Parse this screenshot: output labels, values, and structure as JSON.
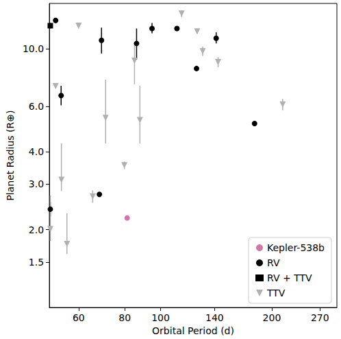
{
  "chart_data": {
    "type": "scatter",
    "x_label": "Orbital Period (d)",
    "y_label": "Planet Radius (R⊕)",
    "log": true,
    "grid": false,
    "legend": "lower right",
    "xlim": [
      50,
      300
    ],
    "ylim": [
      1,
      15
    ],
    "xticks": [
      60,
      80,
      100,
      140,
      200,
      270
    ],
    "yticks": [
      1.5,
      {
        "value": 2,
        "label": "2.0"
      },
      {
        "value": 3,
        "label": "3.0"
      },
      {
        "value": 4,
        "label": "4.0"
      },
      {
        "value": 6,
        "label": "6.0"
      },
      {
        "value": 10,
        "label": "10.0"
      }
    ],
    "series": [
      {
        "name": "Kepler-538b",
        "color": "#cc79a7",
        "marker": "circle",
        "x": [
          81.2
        ],
        "y": [
          2.22
        ],
        "yerr": [
          [
            0.04,
            0.04
          ]
        ]
      },
      {
        "name": "RV",
        "color": "#000000",
        "marker": "circle",
        "x": [
          50.3,
          52.0,
          53.8,
          69.2,
          86.1,
          94.8,
          110.7,
          141.4,
          125.1,
          179.6,
          68.3
        ],
        "y": [
          2.4,
          12.9,
          6.6,
          10.8,
          10.5,
          12.0,
          12.0,
          11.0,
          8.4,
          5.15,
          2.74
        ],
        "yerr": [
          [
            0.15,
            0.15
          ],
          [
            0.3,
            0.3
          ],
          [
            0.55,
            0.6
          ],
          [
            1.2,
            1.3
          ],
          [
            1.4,
            1.5
          ],
          [
            0.5,
            0.6
          ],
          [
            0.2,
            0.2
          ],
          [
            0.5,
            0.6
          ],
          [
            0.1,
            0.1
          ],
          [
            0.1,
            0.1
          ],
          [
            0.05,
            0.05
          ]
        ]
      },
      {
        "name": "RV + TTV",
        "color": "#000000",
        "marker": "square",
        "x": [
          50.3
        ],
        "y": [
          12.3
        ],
        "yerr": [
          [
            0.3,
            0.3
          ]
        ]
      },
      {
        "name": "TTV",
        "color": "#b0b0b0",
        "marker": "triangle-down",
        "x": [
          50.3,
          52.0,
          53.9,
          55.8,
          60.0,
          65.5,
          71.0,
          79.8,
          85.0,
          87.9,
          114.0,
          125.6,
          130.0,
          143.1,
          214.0
        ],
        "y": [
          2.01,
          7.18,
          3.12,
          1.76,
          12.3,
          2.69,
          5.41,
          3.55,
          9.0,
          5.31,
          13.7,
          11.7,
          9.8,
          8.9,
          6.1
        ],
        "yerr": [
          [
            0.2,
            0.7
          ],
          [
            0.1,
            0.1
          ],
          [
            0.3,
            1.2
          ],
          [
            0.15,
            0.55
          ],
          [
            0.3,
            0.3
          ],
          [
            0.15,
            0.15
          ],
          [
            1.1,
            2.2
          ],
          [
            0.12,
            0.12
          ],
          [
            1.7,
            1.6
          ],
          [
            1.0,
            1.9
          ],
          [
            0.4,
            0.4
          ],
          [
            0.2,
            0.2
          ],
          [
            0.4,
            0.4
          ],
          [
            0.4,
            0.4
          ],
          [
            0.3,
            0.3
          ]
        ]
      }
    ]
  }
}
